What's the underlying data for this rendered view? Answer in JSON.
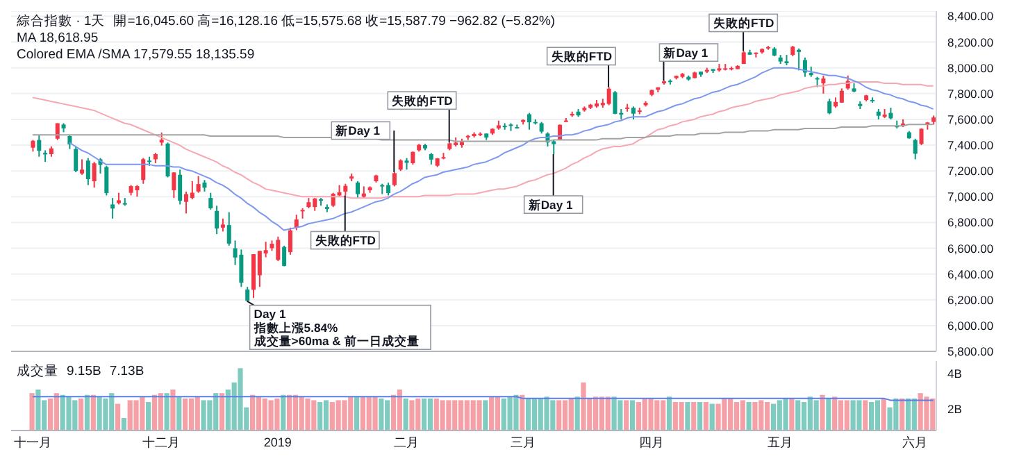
{
  "chart_data": [
    {
      "type": "candlestick",
      "title": "綜合指數 · 1天",
      "tick_labels": "y",
      "grid": "y",
      "annotations": [
        "開=16,045.60 高=16,128.16 低=15,575.68 收=15,587.79 −962.82 (−5.82%)",
        "MA 18,618.95",
        "Colored EMA /SMA 17,579.55 18,135.59",
        "Day 1\n指數上漲5.84%\n成交量>60ma & 前一日成交量",
        {
          "text": "失敗的FTD",
          "y": 7010
        },
        {
          "text": "新Day 1",
          "y": 7190
        },
        {
          "text": "失敗的FTD",
          "y": 7420
        },
        {
          "text": "新Day 1",
          "y": 7330
        },
        "失敗的FTD",
        "新Day 1",
        {
          "text": "失敗的FTD",
          "y": 8130
        }
      ],
      "categories": [
        null,
        null,
        null,
        null,
        null,
        null,
        null,
        null,
        null,
        null,
        null,
        null,
        null,
        null,
        null,
        null,
        null,
        null,
        null,
        null,
        null,
        null,
        null,
        null,
        null,
        null,
        null,
        null,
        null,
        null,
        null,
        null,
        null,
        null,
        null,
        null,
        null,
        null,
        null,
        null,
        null,
        null,
        null,
        null,
        null,
        null,
        null,
        null,
        null,
        null,
        null,
        null,
        null,
        null,
        null,
        null,
        null,
        null,
        null,
        null,
        null,
        null,
        null,
        null,
        null,
        null,
        null,
        null,
        null,
        null,
        null,
        null,
        null,
        null,
        null,
        null,
        null,
        null,
        null,
        null,
        null,
        null,
        null,
        null,
        null,
        null,
        null,
        null,
        null,
        null,
        null,
        null,
        null,
        null,
        null,
        null,
        null,
        null,
        null,
        null,
        null,
        null,
        null,
        null,
        null,
        null,
        null,
        null,
        null,
        null,
        null,
        null,
        null,
        null,
        null,
        null,
        null,
        null,
        null,
        null,
        null,
        null,
        null,
        null,
        null,
        null,
        null,
        null,
        null,
        null,
        null,
        null,
        null,
        null,
        null,
        null,
        null,
        null,
        null,
        null,
        null,
        null,
        null,
        null,
        null,
        null,
        null,
        null
      ],
      "ohlc": [
        [
          7380,
          7440,
          7350,
          7434
        ],
        [
          7440,
          7480,
          7310,
          7357
        ],
        [
          7340,
          7360,
          7270,
          7328
        ],
        [
          7330,
          7390,
          7310,
          7375
        ],
        [
          7450,
          7570,
          7440,
          7570
        ],
        [
          7560,
          7570,
          7500,
          7530
        ],
        [
          7470,
          7480,
          7370,
          7406
        ],
        [
          7370,
          7390,
          7190,
          7200
        ],
        [
          7180,
          7290,
          7170,
          7210
        ],
        [
          7280,
          7300,
          7090,
          7136
        ],
        [
          7120,
          7270,
          7070,
          7259
        ],
        [
          7290,
          7300,
          7180,
          7247
        ],
        [
          7230,
          7240,
          7010,
          7028
        ],
        [
          6940,
          6990,
          6830,
          6908
        ],
        [
          6950,
          7030,
          6940,
          6972
        ],
        [
          6950,
          6990,
          6930,
          6939
        ],
        [
          7030,
          7090,
          7010,
          7082
        ],
        [
          7050,
          7090,
          7000,
          7082
        ],
        [
          7130,
          7300,
          7100,
          7291
        ],
        [
          7280,
          7310,
          7240,
          7273
        ],
        [
          7290,
          7340,
          7260,
          7330
        ],
        [
          7420,
          7498,
          7397,
          7442
        ],
        [
          7412,
          7420,
          7150,
          7158
        ],
        [
          7050,
          7190,
          6990,
          7188
        ],
        [
          7170,
          7210,
          6940,
          6969
        ],
        [
          6960,
          7040,
          6870,
          7020
        ],
        [
          6990,
          7120,
          6980,
          7031
        ],
        [
          7040,
          7160,
          7030,
          7098
        ],
        [
          7110,
          7130,
          7040,
          7070
        ],
        [
          6990,
          7030,
          6900,
          6910
        ],
        [
          6890,
          6930,
          6710,
          6753
        ],
        [
          6760,
          6830,
          6730,
          6784
        ],
        [
          6780,
          6880,
          6620,
          6636
        ],
        [
          6600,
          6660,
          6470,
          6528
        ],
        [
          6550,
          6590,
          6300,
          6333
        ],
        [
          6280,
          6300,
          6190,
          6193
        ],
        [
          6278,
          6555,
          6214,
          6554
        ],
        [
          6390,
          6580,
          6300,
          6579
        ],
        [
          6560,
          6650,
          6530,
          6585
        ],
        [
          6600,
          6660,
          6580,
          6635
        ],
        [
          6510,
          6690,
          6500,
          6665
        ],
        [
          6610,
          6620,
          6460,
          6463
        ],
        [
          6570,
          6760,
          6550,
          6739
        ],
        [
          6760,
          6860,
          6740,
          6823
        ],
        [
          6890,
          6910,
          6830,
          6897
        ],
        [
          6920,
          6990,
          6910,
          6957
        ],
        [
          6920,
          6990,
          6890,
          6986
        ],
        [
          6980,
          6990,
          6930,
          6971
        ],
        [
          6920,
          6940,
          6880,
          6905
        ],
        [
          6930,
          7030,
          6920,
          7023
        ],
        [
          7010,
          7090,
          7000,
          7034
        ],
        [
          7040,
          7100,
          7010,
          7084
        ],
        [
          7140,
          7180,
          7120,
          7157
        ],
        [
          7110,
          7120,
          6990,
          7020
        ],
        [
          7000,
          7080,
          6990,
          7025
        ],
        [
          7050,
          7080,
          7030,
          7073
        ],
        [
          7120,
          7170,
          7110,
          7165
        ],
        [
          7090,
          7100,
          7020,
          7085
        ],
        [
          7090,
          7110,
          7010,
          7028
        ],
        [
          7090,
          7190,
          7080,
          7183
        ],
        [
          7210,
          7290,
          7200,
          7281
        ],
        [
          7280,
          7300,
          7210,
          7263
        ],
        [
          7260,
          7350,
          7250,
          7348
        ],
        [
          7360,
          7410,
          7350,
          7402
        ],
        [
          7400,
          7410,
          7360,
          7375
        ],
        [
          7330,
          7340,
          7250,
          7288
        ],
        [
          7240,
          7300,
          7230,
          7298
        ],
        [
          7300,
          7340,
          7290,
          7307
        ],
        [
          7370,
          7420,
          7360,
          7414
        ],
        [
          7400,
          7460,
          7390,
          7420
        ],
        [
          7400,
          7450,
          7380,
          7426
        ],
        [
          7460,
          7480,
          7440,
          7472
        ],
        [
          7470,
          7500,
          7460,
          7487
        ],
        [
          7480,
          7500,
          7470,
          7489
        ],
        [
          7490,
          7490,
          7440,
          7459
        ],
        [
          7490,
          7530,
          7480,
          7527
        ],
        [
          7530,
          7590,
          7520,
          7554
        ],
        [
          7540,
          7570,
          7520,
          7550
        ],
        [
          7560,
          7570,
          7510,
          7549
        ],
        [
          7540,
          7560,
          7530,
          7533
        ],
        [
          7580,
          7600,
          7560,
          7595
        ],
        [
          7640,
          7650,
          7520,
          7577
        ],
        [
          7580,
          7600,
          7560,
          7576
        ],
        [
          7570,
          7580,
          7490,
          7505
        ],
        [
          7490,
          7500,
          7390,
          7421
        ],
        [
          7430,
          7440,
          7330,
          7408
        ],
        [
          7440,
          7560,
          7440,
          7558
        ],
        [
          7590,
          7610,
          7580,
          7591
        ],
        [
          7630,
          7660,
          7620,
          7643
        ],
        [
          7660,
          7680,
          7620,
          7631
        ],
        [
          7670,
          7700,
          7660,
          7689
        ],
        [
          7690,
          7720,
          7680,
          7714
        ],
        [
          7700,
          7750,
          7690,
          7723
        ],
        [
          7710,
          7760,
          7690,
          7728
        ],
        [
          7720,
          7850,
          7710,
          7838
        ],
        [
          7810,
          7820,
          7640,
          7643
        ],
        [
          7650,
          7680,
          7600,
          7637
        ],
        [
          7690,
          7720,
          7660,
          7692
        ],
        [
          7690,
          7700,
          7600,
          7644
        ],
        [
          7660,
          7690,
          7640,
          7669
        ],
        [
          7710,
          7740,
          7700,
          7729
        ],
        [
          7790,
          7830,
          7780,
          7828
        ],
        [
          7830,
          7850,
          7810,
          7848
        ],
        [
          7880,
          7900,
          7870,
          7895
        ],
        [
          7900,
          7910,
          7870,
          7891
        ],
        [
          7920,
          7940,
          7910,
          7938
        ],
        [
          7930,
          7960,
          7920,
          7953
        ],
        [
          7930,
          7940,
          7900,
          7909
        ],
        [
          7920,
          7970,
          7920,
          7964
        ],
        [
          7970,
          7970,
          7930,
          7947
        ],
        [
          7970,
          8000,
          7960,
          7984
        ],
        [
          7990,
          7990,
          7960,
          7976
        ],
        [
          7980,
          8030,
          7970,
          7996
        ],
        [
          7990,
          8030,
          7980,
          7996
        ],
        [
          7990,
          8010,
          7980,
          7998
        ],
        [
          7990,
          8020,
          7990,
          8015
        ],
        [
          8030,
          8130,
          8030,
          8120
        ],
        [
          8120,
          8140,
          8100,
          8102
        ],
        [
          8110,
          8120,
          8080,
          8118
        ],
        [
          8120,
          8150,
          8110,
          8146
        ],
        [
          8150,
          8170,
          8140,
          8161
        ],
        [
          8150,
          8160,
          8090,
          8095
        ],
        [
          8080,
          8100,
          8030,
          8049
        ],
        [
          8050,
          8100,
          8020,
          8036
        ],
        [
          8100,
          8170,
          8090,
          8164
        ],
        [
          8140,
          8150,
          7980,
          8123
        ],
        [
          8060,
          8080,
          7930,
          7963
        ],
        [
          7960,
          8010,
          7930,
          7943
        ],
        [
          7920,
          7930,
          7850,
          7910
        ],
        [
          7880,
          7940,
          7800,
          7917
        ],
        [
          7740,
          7760,
          7640,
          7647
        ],
        [
          7700,
          7770,
          7690,
          7735
        ],
        [
          7730,
          7840,
          7730,
          7822
        ],
        [
          7840,
          7940,
          7830,
          7898
        ],
        [
          7840,
          7880,
          7810,
          7816
        ],
        [
          7720,
          7740,
          7680,
          7703
        ],
        [
          7750,
          7790,
          7740,
          7786
        ],
        [
          7750,
          7770,
          7730,
          7751
        ],
        [
          7660,
          7680,
          7600,
          7628
        ],
        [
          7620,
          7680,
          7610,
          7637
        ],
        [
          7650,
          7690,
          7600,
          7608
        ],
        [
          7550,
          7590,
          7530,
          7547
        ],
        [
          7550,
          7600,
          7540,
          7568
        ],
        [
          7500,
          7510,
          7450,
          7453
        ],
        [
          7440,
          7450,
          7290,
          7333
        ],
        [
          7410,
          7530,
          7400,
          7527
        ],
        [
          7560,
          7580,
          7520,
          7576
        ],
        [
          7580,
          7630,
          7560,
          7615
        ]
      ],
      "colors": [
        "#f23645",
        "#089981",
        "#089981",
        "#f23645",
        "#f23645",
        "#089981",
        "#089981",
        "#089981",
        "#f23645",
        "#089981",
        "#f23645",
        "#089981",
        "#089981",
        "#089981",
        "#f23645",
        "#089981",
        "#f23645",
        "#f23645",
        "#f23645",
        "#089981",
        "#f23645",
        "#f23645",
        "#089981",
        "#f23645",
        "#089981",
        "#f23645",
        "#f23645",
        "#f23645",
        "#089981",
        "#089981",
        "#089981",
        "#f23645",
        "#089981",
        "#089981",
        "#089981",
        "#089981",
        "#f23645",
        "#f23645",
        "#f23645",
        "#f23645",
        "#f23645",
        "#089981",
        "#f23645",
        "#f23645",
        "#f23645",
        "#f23645",
        "#f23645",
        "#089981",
        "#089981",
        "#f23645",
        "#f23645",
        "#f23645",
        "#f23645",
        "#089981",
        "#f23645",
        "#f23645",
        "#f23645",
        "#089981",
        "#089981",
        "#f23645",
        "#f23645",
        "#089981",
        "#f23645",
        "#f23645",
        "#089981",
        "#089981",
        "#f23645",
        "#f23645",
        "#f23645",
        "#f23645",
        "#f23645",
        "#f23645",
        "#f23645",
        "#f23645",
        "#089981",
        "#f23645",
        "#f23645",
        "#089981",
        "#089981",
        "#089981",
        "#f23645",
        "#089981",
        "#089981",
        "#089981",
        "#089981",
        "#089981",
        "#f23645",
        "#f23645",
        "#f23645",
        "#089981",
        "#f23645",
        "#f23645",
        "#f23645",
        "#f23645",
        "#f23645",
        "#089981",
        "#089981",
        "#f23645",
        "#089981",
        "#f23645",
        "#f23645",
        "#f23645",
        "#f23645",
        "#f23645",
        "#089981",
        "#f23645",
        "#f23645",
        "#089981",
        "#f23645",
        "#089981",
        "#f23645",
        "#089981",
        "#f23645",
        "#f23645",
        "#f23645",
        "#f23645",
        "#f23645",
        "#089981",
        "#f23645",
        "#f23645",
        "#f23645",
        "#089981",
        "#089981",
        "#089981",
        "#f23645",
        "#089981",
        "#089981",
        "#089981",
        "#089981",
        "#f23645",
        "#089981",
        "#f23645",
        "#f23645",
        "#f23645",
        "#089981",
        "#089981",
        "#f23645",
        "#089981",
        "#089981",
        "#f23645",
        "#089981",
        "#089981",
        "#f23645",
        "#089981",
        "#089981",
        "#f23645",
        "#f23645",
        "#f23645"
      ],
      "series": [
        {
          "type": "line",
          "color": "#f5a8b2",
          "values": [
            7770,
            7760,
            7750,
            7740,
            7730,
            7720,
            7710,
            7700,
            7690,
            7680,
            7670,
            7650,
            7630,
            7610,
            7590,
            7570,
            7560,
            7540,
            7520,
            7500,
            7480,
            7460,
            7440,
            7420,
            7400,
            7370,
            7350,
            7330,
            7310,
            7290,
            7270,
            7240,
            7220,
            7190,
            7170,
            7140,
            7110,
            7090,
            7060,
            7050,
            7040,
            7030,
            7020,
            7010,
            7000,
            7000,
            7000,
            7000,
            7000,
            7000,
            7000,
            7000,
            6990,
            6990,
            6990,
            6990,
            6990,
            6990,
            7000,
            7000,
            7000,
            7000,
            7000,
            7000,
            7010,
            7010,
            7010,
            7010,
            7010,
            7020,
            7020,
            7020,
            7020,
            7030,
            7040,
            7050,
            7060,
            7060,
            7070,
            7080,
            7100,
            7120,
            7130,
            7150,
            7170,
            7180,
            7200,
            7220,
            7250,
            7270,
            7300,
            7320,
            7350,
            7370,
            7380,
            7390,
            7390,
            7400,
            7410,
            7440,
            7460,
            7490,
            7520,
            7530,
            7550,
            7560,
            7580,
            7590,
            7600,
            7620,
            7630,
            7640,
            7660,
            7670,
            7690,
            7700,
            7710,
            7720,
            7740,
            7750,
            7760,
            7770,
            7790,
            7800,
            7810,
            7820,
            7840,
            7850,
            7860,
            7860,
            7870,
            7870,
            7880,
            7880,
            7890,
            7890,
            7890,
            7890,
            7890,
            7880,
            7880,
            7880,
            7870,
            7870,
            7870,
            7870,
            7860,
            7860
          ]
        },
        {
          "type": "line",
          "color": "#7d98ee",
          "values": [
            null,
            null,
            null,
            null,
            null,
            null,
            7420,
            7390,
            7360,
            7340,
            7310,
            7280,
            7250,
            7250,
            7250,
            7250,
            7250,
            7250,
            7250,
            7250,
            7240,
            7240,
            7240,
            7230,
            7230,
            7210,
            7200,
            7180,
            7160,
            7140,
            7110,
            7090,
            7060,
            7020,
            6990,
            6950,
            6920,
            6880,
            6850,
            6810,
            6780,
            6740,
            6750,
            6760,
            6770,
            6790,
            6800,
            6810,
            6820,
            6830,
            6850,
            6870,
            6880,
            6900,
            6920,
            6940,
            6960,
            6970,
            6990,
            7020,
            7040,
            7070,
            7100,
            7120,
            7150,
            7160,
            7170,
            7190,
            7200,
            7210,
            7220,
            7230,
            7250,
            7260,
            7270,
            7290,
            7310,
            7340,
            7360,
            7380,
            7400,
            7430,
            7450,
            7460,
            7460,
            7470,
            7470,
            7480,
            7480,
            7490,
            7510,
            7520,
            7540,
            7550,
            7560,
            7580,
            7590,
            7610,
            7620,
            7620,
            7620,
            7640,
            7660,
            7670,
            7690,
            7710,
            7720,
            7740,
            7760,
            7770,
            7790,
            7810,
            7820,
            7840,
            7860,
            7870,
            7890,
            7910,
            7930,
            7960,
            7980,
            8000,
            8000,
            8000,
            8000,
            7990,
            7980,
            7970,
            7960,
            7950,
            7940,
            7940,
            7930,
            7920,
            7900,
            7880,
            7850,
            7830,
            7820,
            7800,
            7790,
            7770,
            7760,
            7740,
            7730,
            7710,
            7700,
            7680
          ]
        },
        {
          "type": "line",
          "color": "#a3a3a3",
          "values": [
            7480,
            7480,
            7480,
            7480,
            7480,
            7480,
            7480,
            7480,
            7480,
            7480,
            7480,
            7480,
            7480,
            7480,
            7480,
            7480,
            7480,
            7480,
            7480,
            7480,
            7480,
            7480,
            7480,
            7480,
            7480,
            7480,
            7480,
            7480,
            7480,
            7470,
            7470,
            7470,
            7470,
            7470,
            7470,
            7470,
            7470,
            7470,
            7470,
            7470,
            7470,
            7460,
            7460,
            7460,
            7460,
            7460,
            7460,
            7460,
            7460,
            7460,
            7460,
            7460,
            7460,
            7450,
            7450,
            7450,
            7450,
            7440,
            7440,
            7440,
            7440,
            7440,
            7440,
            7440,
            7440,
            7440,
            7440,
            7440,
            7440,
            7430,
            7430,
            7430,
            7430,
            7430,
            7430,
            7430,
            7430,
            7430,
            7430,
            7430,
            7430,
            7430,
            7430,
            7430,
            7430,
            7440,
            7440,
            7440,
            7440,
            7440,
            7440,
            7440,
            7440,
            7450,
            7450,
            7450,
            7450,
            7460,
            7460,
            7460,
            7460,
            7470,
            7470,
            7470,
            7470,
            7480,
            7480,
            7480,
            7480,
            7490,
            7490,
            7490,
            7490,
            7500,
            7500,
            7500,
            7500,
            7510,
            7510,
            7510,
            7510,
            7520,
            7520,
            7520,
            7520,
            7520,
            7530,
            7530,
            7530,
            7530,
            7530,
            7530,
            7540,
            7540,
            7540,
            7540,
            7540,
            7550,
            7550,
            7550,
            7550,
            7550,
            7550,
            7560,
            7560,
            7560,
            7560,
            7560
          ]
        }
      ],
      "ylim": [
        5800,
        8440
      ],
      "yticks": [
        {
          "value": 5800,
          "label": "5,800.00"
        },
        {
          "value": 6000,
          "label": "6,000.00"
        },
        {
          "value": 6200,
          "label": "6,200.00"
        },
        {
          "value": 6400,
          "label": "6,400.00"
        },
        {
          "value": 6600,
          "label": "6,600.00"
        },
        {
          "value": 6800,
          "label": "6,800.00"
        },
        {
          "value": 7000,
          "label": "7,000.00"
        },
        {
          "value": 7200,
          "label": "7,200.00"
        },
        {
          "value": 7400,
          "label": "7,400.00"
        },
        {
          "value": 7600,
          "label": "7,600.00"
        },
        {
          "value": 7800,
          "label": "7,800.00"
        },
        {
          "value": 8000,
          "label": "8,000.00"
        },
        {
          "value": 8200,
          "label": "8,200.00"
        },
        {
          "value": 8400,
          "label": "8,400.00"
        }
      ]
    },
    {
      "type": "bar",
      "title": "成交量",
      "annotations": [
        "9.15B",
        "7.13B"
      ],
      "categories": [
        "十一月",
        null,
        null,
        null,
        null,
        null,
        null,
        null,
        null,
        null,
        null,
        null,
        null,
        null,
        null,
        null,
        null,
        null,
        null,
        null,
        null,
        "十二月",
        null,
        null,
        null,
        null,
        null,
        null,
        null,
        null,
        null,
        null,
        null,
        null,
        null,
        null,
        null,
        null,
        null,
        null,
        "2019",
        null,
        null,
        null,
        null,
        null,
        null,
        null,
        null,
        null,
        null,
        null,
        null,
        null,
        null,
        null,
        null,
        null,
        null,
        null,
        null,
        "二月",
        null,
        null,
        null,
        null,
        null,
        null,
        null,
        null,
        null,
        null,
        null,
        null,
        null,
        null,
        null,
        null,
        null,
        null,
        "三月",
        null,
        null,
        null,
        null,
        null,
        null,
        null,
        null,
        null,
        null,
        null,
        null,
        null,
        null,
        null,
        null,
        null,
        null,
        null,
        null,
        "四月",
        null,
        null,
        null,
        null,
        null,
        null,
        null,
        null,
        null,
        null,
        null,
        null,
        null,
        null,
        null,
        null,
        null,
        null,
        null,
        null,
        "五月",
        null,
        null,
        null,
        null,
        null,
        null,
        null,
        null,
        null,
        null,
        null,
        null,
        null,
        null,
        null,
        null,
        null,
        null,
        null,
        null,
        null,
        "六月",
        null,
        null,
        null
      ],
      "series": [
        {
          "type": "bar",
          "values": [
            2.9,
            3.1,
            2.5,
            2.6,
            2.9,
            2.8,
            2.7,
            2.5,
            2.6,
            2.8,
            2.8,
            2.7,
            2.6,
            2.9,
            2.3,
            1.5,
            2.5,
            2.5,
            2.7,
            2.4,
            2.8,
            2.9,
            2.9,
            3.1,
            2.7,
            2.6,
            2.6,
            2.7,
            2.5,
            2.5,
            2.9,
            2.9,
            3.1,
            3.5,
            4.3,
            2.1,
            2.8,
            2.7,
            2.6,
            2.5,
            2.6,
            2.8,
            2.8,
            2.8,
            2.7,
            2.6,
            2.5,
            2.4,
            2.5,
            2.4,
            2.5,
            2.5,
            2.7,
            2.7,
            2.7,
            2.7,
            2.7,
            2.6,
            2.5,
            2.8,
            3.1,
            2.6,
            2.5,
            2.6,
            2.6,
            2.6,
            2.6,
            2.5,
            2.5,
            2.5,
            2.5,
            2.5,
            2.5,
            2.5,
            2.5,
            2.7,
            2.7,
            2.6,
            2.7,
            2.8,
            2.8,
            2.6,
            2.6,
            2.6,
            2.7,
            2.5,
            2.5,
            2.5,
            2.6,
            2.7,
            3.5,
            2.6,
            2.7,
            2.7,
            2.7,
            2.7,
            2.5,
            2.5,
            2.5,
            2.4,
            2.6,
            2.6,
            2.5,
            2.5,
            2.7,
            2.4,
            2.4,
            2.4,
            2.4,
            2.4,
            2.4,
            2.3,
            2.3,
            2.6,
            2.6,
            2.4,
            2.5,
            2.4,
            2.4,
            2.5,
            2.4,
            2.3,
            2.5,
            2.6,
            2.6,
            2.5,
            2.4,
            2.7,
            2.5,
            2.8,
            2.6,
            2.7,
            2.5,
            2.5,
            2.5,
            2.5,
            2.5,
            2.4,
            2.5,
            2.6,
            2.1,
            2.6,
            2.6,
            2.6,
            2.6,
            2.9,
            2.7,
            2.6
          ],
          "colors": [
            "#f5a0a6",
            "#80cbc0",
            "#80cbc0",
            "#f5a0a6",
            "#f5a0a6",
            "#80cbc0",
            "#80cbc0",
            "#80cbc0",
            "#f5a0a6",
            "#80cbc0",
            "#f5a0a6",
            "#80cbc0",
            "#80cbc0",
            "#80cbc0",
            "#f5a0a6",
            "#80cbc0",
            "#f5a0a6",
            "#f5a0a6",
            "#f5a0a6",
            "#80cbc0",
            "#f5a0a6",
            "#f5a0a6",
            "#80cbc0",
            "#f5a0a6",
            "#80cbc0",
            "#f5a0a6",
            "#f5a0a6",
            "#f5a0a6",
            "#80cbc0",
            "#80cbc0",
            "#80cbc0",
            "#f5a0a6",
            "#80cbc0",
            "#80cbc0",
            "#80cbc0",
            "#80cbc0",
            "#f5a0a6",
            "#f5a0a6",
            "#f5a0a6",
            "#f5a0a6",
            "#f5a0a6",
            "#80cbc0",
            "#f5a0a6",
            "#f5a0a6",
            "#f5a0a6",
            "#f5a0a6",
            "#f5a0a6",
            "#80cbc0",
            "#80cbc0",
            "#f5a0a6",
            "#f5a0a6",
            "#f5a0a6",
            "#f5a0a6",
            "#80cbc0",
            "#f5a0a6",
            "#f5a0a6",
            "#f5a0a6",
            "#80cbc0",
            "#80cbc0",
            "#f5a0a6",
            "#f5a0a6",
            "#80cbc0",
            "#f5a0a6",
            "#f5a0a6",
            "#80cbc0",
            "#80cbc0",
            "#f5a0a6",
            "#f5a0a6",
            "#f5a0a6",
            "#f5a0a6",
            "#f5a0a6",
            "#f5a0a6",
            "#f5a0a6",
            "#f5a0a6",
            "#80cbc0",
            "#f5a0a6",
            "#f5a0a6",
            "#80cbc0",
            "#80cbc0",
            "#80cbc0",
            "#f5a0a6",
            "#80cbc0",
            "#80cbc0",
            "#80cbc0",
            "#80cbc0",
            "#80cbc0",
            "#f5a0a6",
            "#f5a0a6",
            "#f5a0a6",
            "#80cbc0",
            "#f5a0a6",
            "#f5a0a6",
            "#f5a0a6",
            "#f5a0a6",
            "#f5a0a6",
            "#80cbc0",
            "#80cbc0",
            "#f5a0a6",
            "#80cbc0",
            "#f5a0a6",
            "#f5a0a6",
            "#f5a0a6",
            "#f5a0a6",
            "#f5a0a6",
            "#80cbc0",
            "#f5a0a6",
            "#f5a0a6",
            "#80cbc0",
            "#f5a0a6",
            "#80cbc0",
            "#f5a0a6",
            "#80cbc0",
            "#f5a0a6",
            "#f5a0a6",
            "#f5a0a6",
            "#f5a0a6",
            "#f5a0a6",
            "#80cbc0",
            "#f5a0a6",
            "#f5a0a6",
            "#f5a0a6",
            "#80cbc0",
            "#80cbc0",
            "#80cbc0",
            "#f5a0a6",
            "#80cbc0",
            "#80cbc0",
            "#80cbc0",
            "#80cbc0",
            "#f5a0a6",
            "#80cbc0",
            "#f5a0a6",
            "#f5a0a6",
            "#f5a0a6",
            "#80cbc0",
            "#80cbc0",
            "#f5a0a6",
            "#80cbc0",
            "#80cbc0",
            "#f5a0a6",
            "#80cbc0",
            "#80cbc0",
            "#f5a0a6",
            "#80cbc0",
            "#80cbc0",
            "#f5a0a6",
            "#f5a0a6",
            "#f5a0a6"
          ]
        },
        {
          "type": "line",
          "color": "#5b7fe8",
          "values": [
            2.7,
            2.7,
            2.7,
            2.7,
            2.7,
            2.7,
            2.7,
            2.7,
            2.7,
            2.7,
            2.7,
            2.7,
            2.7,
            2.7,
            2.7,
            2.7,
            2.7,
            2.7,
            2.7,
            2.7,
            2.7,
            2.7,
            2.7,
            2.7,
            2.7,
            2.7,
            2.7,
            2.7,
            2.7,
            2.7,
            2.7,
            2.7,
            2.7,
            2.7,
            2.7,
            2.7,
            2.7,
            2.7,
            2.7,
            2.7,
            2.7,
            2.7,
            2.7,
            2.7,
            2.7,
            2.7,
            2.7,
            2.7,
            2.7,
            2.7,
            2.7,
            2.7,
            2.7,
            2.7,
            2.7,
            2.7,
            2.7,
            2.7,
            2.7,
            2.7,
            2.7,
            2.7,
            2.7,
            2.7,
            2.7,
            2.7,
            2.7,
            2.7,
            2.7,
            2.7,
            2.7,
            2.7,
            2.7,
            2.7,
            2.7,
            2.7,
            2.7,
            2.7,
            2.7,
            2.7,
            2.6,
            2.6,
            2.6,
            2.6,
            2.6,
            2.6,
            2.6,
            2.6,
            2.6,
            2.6,
            2.6,
            2.6,
            2.6,
            2.6,
            2.6,
            2.6,
            2.6,
            2.6,
            2.6,
            2.6,
            2.6,
            2.6,
            2.6,
            2.6,
            2.6,
            2.6,
            2.6,
            2.6,
            2.6,
            2.6,
            2.6,
            2.6,
            2.6,
            2.6,
            2.6,
            2.6,
            2.6,
            2.6,
            2.6,
            2.6,
            2.6,
            2.6,
            2.6,
            2.6,
            2.6,
            2.6,
            2.6,
            2.6,
            2.6,
            2.6,
            2.6,
            2.6,
            2.6,
            2.6,
            2.6,
            2.6,
            2.6,
            2.6,
            2.6,
            2.6,
            2.5,
            2.5,
            2.5,
            2.5,
            2.5,
            2.5,
            2.5,
            2.5
          ]
        }
      ],
      "ylim": [
        0.8,
        4.7
      ],
      "yticks": [
        {
          "value": 2,
          "label": "2B"
        },
        {
          "value": 4,
          "label": "4B"
        }
      ]
    }
  ]
}
